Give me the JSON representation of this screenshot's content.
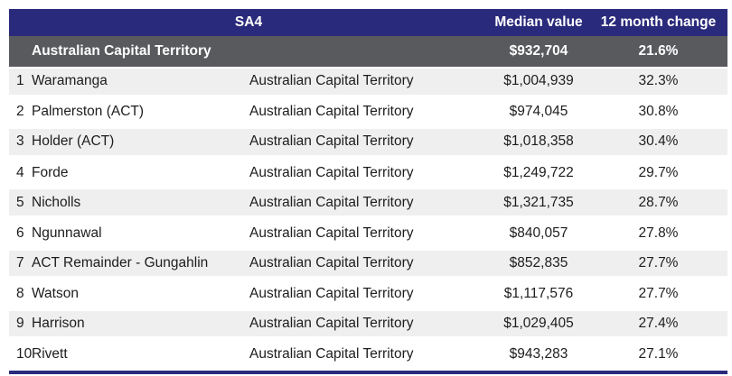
{
  "chart_data": {
    "type": "table",
    "header": {
      "sa4": "SA4",
      "median_value": "Median value",
      "change": "12 month change"
    },
    "summary_row": {
      "name": "Australian Capital Territory",
      "median_value": "$932,704",
      "change": "21.6%"
    },
    "rows": [
      {
        "rank": "1",
        "name": "Waramanga",
        "sa4": "Australian Capital Territory",
        "median_value": "$1,004,939",
        "change": "32.3%"
      },
      {
        "rank": "2",
        "name": "Palmerston (ACT)",
        "sa4": "Australian Capital Territory",
        "median_value": "$974,045",
        "change": "30.8%"
      },
      {
        "rank": "3",
        "name": "Holder (ACT)",
        "sa4": "Australian Capital Territory",
        "median_value": "$1,018,358",
        "change": "30.4%"
      },
      {
        "rank": "4",
        "name": "Forde",
        "sa4": "Australian Capital Territory",
        "median_value": "$1,249,722",
        "change": "29.7%"
      },
      {
        "rank": "5",
        "name": "Nicholls",
        "sa4": "Australian Capital Territory",
        "median_value": "$1,321,735",
        "change": "28.7%"
      },
      {
        "rank": "6",
        "name": "Ngunnawal",
        "sa4": "Australian Capital Territory",
        "median_value": "$840,057",
        "change": "27.8%"
      },
      {
        "rank": "7",
        "name": "ACT Remainder - Gungahlin",
        "sa4": "Australian Capital Territory",
        "median_value": "$852,835",
        "change": "27.7%"
      },
      {
        "rank": "8",
        "name": "Watson",
        "sa4": "Australian Capital Territory",
        "median_value": "$1,117,576",
        "change": "27.7%"
      },
      {
        "rank": "9",
        "name": "Harrison",
        "sa4": "Australian Capital Territory",
        "median_value": "$1,029,405",
        "change": "27.4%"
      },
      {
        "rank": "10",
        "name": "Rivett",
        "sa4": "Australian Capital Territory",
        "median_value": "$943,283",
        "change": "27.1%"
      }
    ],
    "colors": {
      "header_bg": "#2a2a7c",
      "summary_bg": "#595a5e",
      "stripe_bg": "#efefef",
      "bottom_border": "#2a2a7c",
      "header_text": "#ffffff",
      "data_text": "#1d1d1d"
    }
  }
}
